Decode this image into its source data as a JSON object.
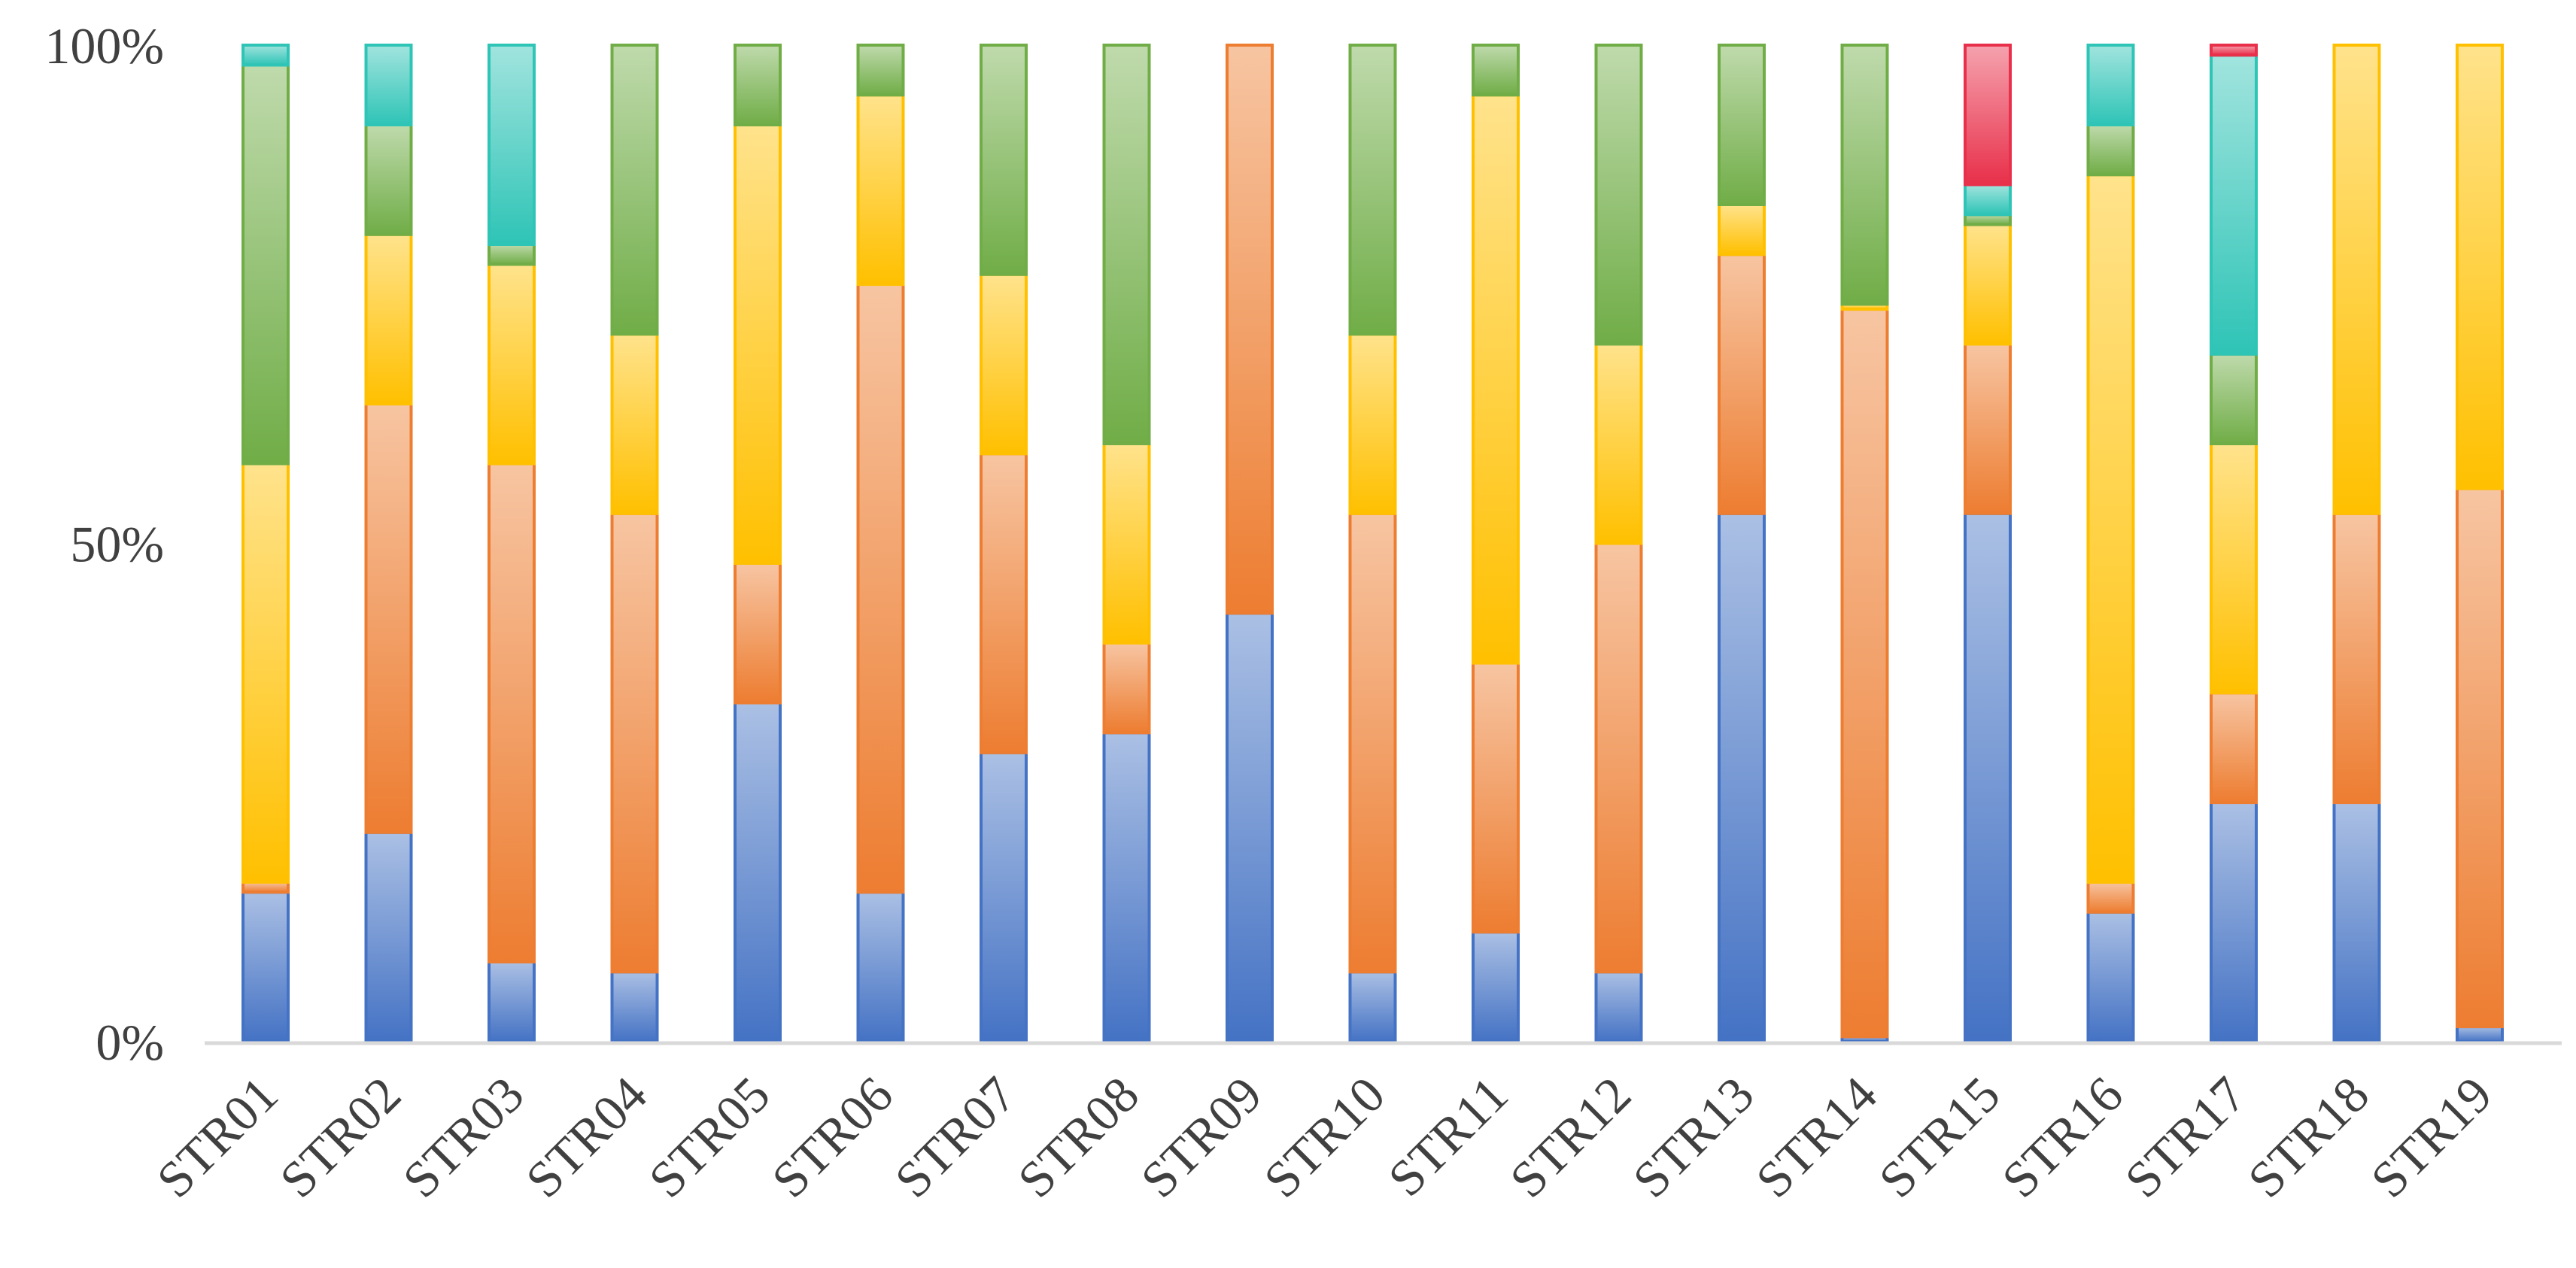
{
  "chart_data": {
    "type": "bar",
    "stacked": true,
    "normalized": true,
    "title": "",
    "xlabel": "",
    "ylabel": "",
    "ylim": [
      0,
      100
    ],
    "y_ticks": [
      "0%",
      "50%",
      "100%"
    ],
    "grid": false,
    "legend": "none",
    "categories": [
      "STR01",
      "STR02",
      "STR03",
      "STR04",
      "STR05",
      "STR06",
      "STR07",
      "STR08",
      "STR09",
      "STR10",
      "STR11",
      "STR12",
      "STR13",
      "STR14",
      "STR15",
      "STR16",
      "STR17",
      "STR18",
      "STR19"
    ],
    "series": [
      {
        "color": "#4472C4",
        "values": [
          15,
          21,
          8,
          7,
          34,
          15,
          29,
          31,
          43,
          7,
          11,
          7,
          53,
          0.5,
          53,
          13,
          24,
          24,
          1.5
        ]
      },
      {
        "color": "#ED7D31",
        "values": [
          1,
          43,
          50,
          46,
          14,
          61,
          30,
          9,
          57,
          46,
          27,
          43,
          26,
          73,
          17,
          3,
          11,
          29,
          54
        ]
      },
      {
        "color": "#FFC000",
        "values": [
          42,
          17,
          20,
          18,
          44,
          19,
          18,
          20,
          0,
          18,
          57,
          20,
          5,
          0.5,
          12,
          71,
          25,
          47,
          44.5
        ]
      },
      {
        "color": "#70AD47",
        "values": [
          40,
          11,
          2,
          29,
          8,
          5,
          23,
          40,
          0,
          29,
          5,
          30,
          16,
          26,
          1,
          5,
          9,
          0,
          0
        ]
      },
      {
        "color": "#2EC4B6",
        "values": [
          2,
          8,
          20,
          0,
          0,
          0,
          0,
          0,
          0,
          0,
          0,
          0,
          0,
          0,
          3,
          8,
          30,
          0,
          0
        ]
      },
      {
        "color": "#E8304A",
        "values": [
          0,
          0,
          0,
          0,
          0,
          0,
          0,
          0,
          0,
          0,
          0,
          0,
          0,
          0,
          14,
          0,
          1,
          0,
          0
        ]
      }
    ]
  }
}
